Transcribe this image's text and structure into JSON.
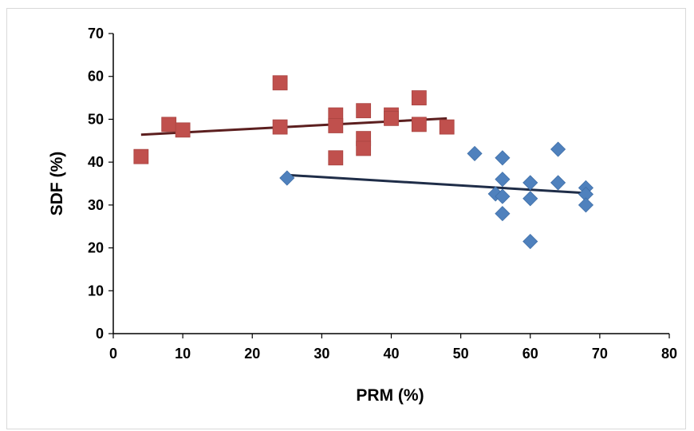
{
  "chart_data": {
    "type": "scatter",
    "title": "",
    "xlabel": "PRM (%)",
    "ylabel": "SDF (%)",
    "xlim": [
      0,
      80
    ],
    "ylim": [
      0,
      70
    ],
    "x_ticks": [
      0,
      10,
      20,
      30,
      40,
      50,
      60,
      70,
      80
    ],
    "y_ticks": [
      0,
      10,
      20,
      30,
      40,
      50,
      60,
      70
    ],
    "grid": false,
    "legend": "none",
    "series": [
      {
        "marker": "square",
        "color": "#c0504d",
        "points": [
          [
            4,
            41.3
          ],
          [
            8,
            48.8
          ],
          [
            10,
            47.5
          ],
          [
            24,
            58.5
          ],
          [
            24,
            48.2
          ],
          [
            32,
            51.0
          ],
          [
            32,
            48.5
          ],
          [
            32,
            41.0
          ],
          [
            36,
            52.0
          ],
          [
            36,
            45.5
          ],
          [
            36,
            43.2
          ],
          [
            40,
            51.0
          ],
          [
            40,
            50.2
          ],
          [
            44,
            55.0
          ],
          [
            44,
            48.8
          ],
          [
            48,
            48.2
          ]
        ],
        "trendline": {
          "x": [
            4,
            48
          ],
          "y": [
            46.4,
            50.2
          ],
          "color": "#5c1f1f"
        }
      },
      {
        "marker": "diamond",
        "color": "#4f81bd",
        "points": [
          [
            25,
            36.3
          ],
          [
            52,
            42.0
          ],
          [
            55,
            32.6
          ],
          [
            56,
            41.0
          ],
          [
            56,
            36.0
          ],
          [
            56,
            32.0
          ],
          [
            56,
            28.0
          ],
          [
            60,
            35.2
          ],
          [
            60,
            31.5
          ],
          [
            60,
            21.5
          ],
          [
            64,
            43.0
          ],
          [
            64,
            35.2
          ],
          [
            68,
            34.0
          ],
          [
            68,
            32.5
          ],
          [
            68,
            30.0
          ]
        ],
        "trendline": {
          "x": [
            25,
            68
          ],
          "y": [
            37.0,
            32.8
          ],
          "color": "#1f2d48"
        }
      }
    ]
  }
}
